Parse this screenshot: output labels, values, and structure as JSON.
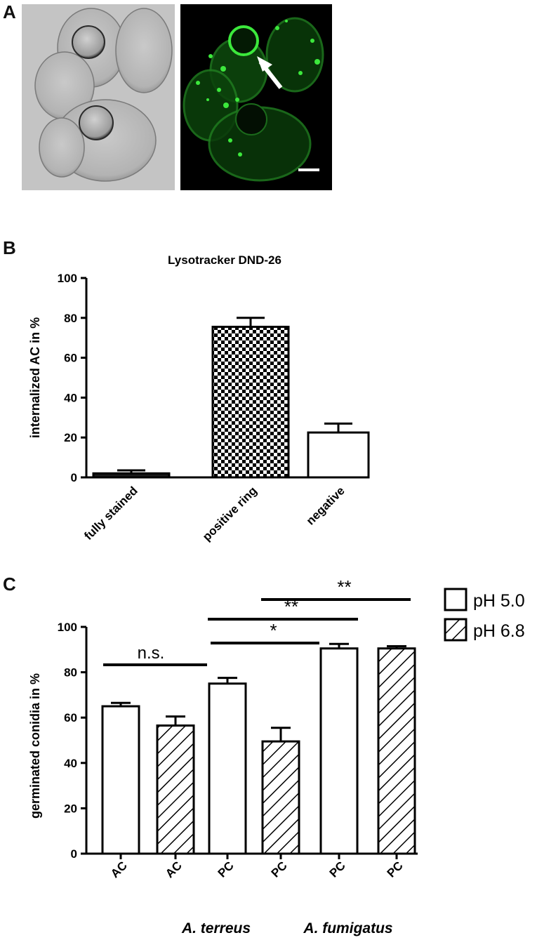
{
  "panels": {
    "A": {
      "letter": "A"
    },
    "B": {
      "letter": "B"
    },
    "C": {
      "letter": "C"
    }
  },
  "colors": {
    "fluorescence_green": "#2fd62f",
    "bar_fill": "#ffffff",
    "bar_dark": "#1a1a1a",
    "axis": "#000000"
  },
  "chart_data": [
    {
      "type": "bar",
      "title": "Lysotracker DND-26",
      "xlabel": "",
      "ylabel": "internalized AC in %",
      "ylim": [
        0,
        100
      ],
      "yticks": [
        "0",
        "20",
        "40",
        "60",
        "80",
        "100"
      ],
      "categories": [
        "fully stained",
        "positive ring",
        "negative"
      ],
      "values": [
        2,
        75.5,
        22.5
      ],
      "errors": [
        1.5,
        4.5,
        4.5
      ],
      "fills": [
        "solid-dark",
        "checkerboard",
        "white"
      ]
    },
    {
      "type": "bar",
      "title": "",
      "xlabel": "",
      "ylabel": "germinated conidia in  %",
      "ylim": [
        0,
        100
      ],
      "yticks": [
        "0",
        "20",
        "40",
        "60",
        "80",
        "100"
      ],
      "categories": [
        "AC",
        "AC",
        "PC",
        "PC",
        "PC",
        "PC"
      ],
      "values": [
        65,
        56.5,
        75,
        49.5,
        90.5,
        90.5
      ],
      "errors": [
        1.5,
        4,
        2.5,
        6,
        2,
        1
      ],
      "patterns": [
        "open",
        "hatched",
        "open",
        "hatched",
        "open",
        "hatched"
      ],
      "group_labels": [
        "A. terreus",
        "A. fumigatus"
      ],
      "legend": [
        {
          "label": "pH 5.0",
          "pattern": "open"
        },
        {
          "label": "pH 6.8",
          "pattern": "hatched"
        }
      ],
      "legend_position": "right",
      "significance": [
        {
          "label": "n.s.",
          "from": 0,
          "to": 1
        },
        {
          "label": "*",
          "from": 2,
          "to": 3
        },
        {
          "label": "**",
          "from": 2,
          "to": 4
        },
        {
          "label": "**",
          "from": 3,
          "to": 5
        }
      ]
    }
  ]
}
